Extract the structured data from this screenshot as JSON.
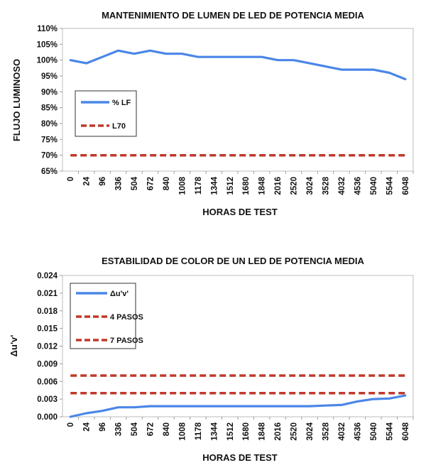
{
  "chart_data": [
    {
      "type": "line",
      "title": "MANTENIMIENTO DE LUMEN DE LED DE POTENCIA MEDIA",
      "xlabel": "HORAS DE TEST",
      "ylabel": "FLUJO LUMINOSO",
      "categories": [
        "0",
        "24",
        "96",
        "336",
        "504",
        "672",
        "840",
        "1008",
        "1178",
        "1344",
        "1512",
        "1680",
        "1848",
        "2016",
        "2520",
        "3024",
        "3528",
        "4032",
        "4536",
        "5040",
        "5544",
        "6048"
      ],
      "y_ticks": [
        "110%",
        "105%",
        "100%",
        "95%",
        "90%",
        "85%",
        "80%",
        "75%",
        "70%",
        "65%"
      ],
      "ylim": [
        65,
        110
      ],
      "grid": false,
      "legend_position": "left",
      "series": [
        {
          "name": "% LF",
          "color": "#4a86e8",
          "style": "solid",
          "values": [
            100,
            99,
            101,
            103,
            102,
            103,
            102,
            102,
            101,
            101,
            101,
            101,
            101,
            100,
            100,
            99,
            98,
            97,
            97,
            97,
            96,
            94
          ]
        },
        {
          "name": "L70",
          "color": "#c0392b",
          "style": "dashed",
          "values": [
            70,
            70,
            70,
            70,
            70,
            70,
            70,
            70,
            70,
            70,
            70,
            70,
            70,
            70,
            70,
            70,
            70,
            70,
            70,
            70,
            70,
            70
          ]
        }
      ]
    },
    {
      "type": "line",
      "title": "ESTABILIDAD DE COLOR DE UN LED DE POTENCIA MEDIA",
      "xlabel": "HORAS DE TEST",
      "ylabel": "Δu'v'",
      "categories": [
        "0",
        "24",
        "96",
        "336",
        "504",
        "672",
        "840",
        "1008",
        "1178",
        "1344",
        "1512",
        "1680",
        "1848",
        "2016",
        "2520",
        "3024",
        "3528",
        "4032",
        "4536",
        "5040",
        "5544",
        "6048"
      ],
      "y_ticks": [
        "0.024",
        "0.021",
        "0.018",
        "0.015",
        "0.012",
        "0.009",
        "0.006",
        "0.003",
        "0.000"
      ],
      "ylim": [
        0,
        0.024
      ],
      "grid": false,
      "legend_position": "top-left",
      "series": [
        {
          "name": "Δu'v'",
          "color": "#4a86e8",
          "style": "solid",
          "values": [
            0,
            0.0006,
            0.001,
            0.0016,
            0.0016,
            0.0018,
            0.0018,
            0.0018,
            0.0018,
            0.0018,
            0.0018,
            0.0018,
            0.0018,
            0.0018,
            0.0018,
            0.0018,
            0.0019,
            0.002,
            0.0026,
            0.003,
            0.0031,
            0.0036
          ]
        },
        {
          "name": "4 PASOS",
          "color": "#c0392b",
          "style": "dashed",
          "values": [
            0.004,
            0.004,
            0.004,
            0.004,
            0.004,
            0.004,
            0.004,
            0.004,
            0.004,
            0.004,
            0.004,
            0.004,
            0.004,
            0.004,
            0.004,
            0.004,
            0.004,
            0.004,
            0.004,
            0.004,
            0.004,
            0.004
          ]
        },
        {
          "name": "7 PASOS",
          "color": "#c0392b",
          "style": "dashed",
          "values": [
            0.007,
            0.007,
            0.007,
            0.007,
            0.007,
            0.007,
            0.007,
            0.007,
            0.007,
            0.007,
            0.007,
            0.007,
            0.007,
            0.007,
            0.007,
            0.007,
            0.007,
            0.007,
            0.007,
            0.007,
            0.007,
            0.007
          ]
        }
      ]
    }
  ]
}
